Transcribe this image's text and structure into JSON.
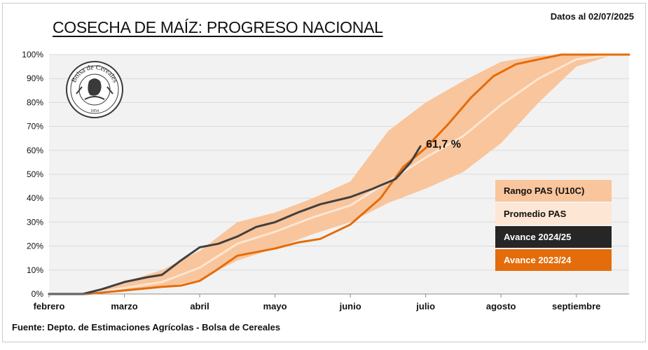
{
  "header": {
    "title": "COSECHA DE MAÍZ: PROGRESO NACIONAL",
    "date_note": "Datos al 02/07/2025"
  },
  "footer": {
    "source": "Fuente: Depto. de Estimaciones Agrícolas - Bolsa de Cereales"
  },
  "logo": {
    "text": "Bolsa de Cereales",
    "year": "1854"
  },
  "colors": {
    "background": "#f2f2f2",
    "range_band": "#f9c59c",
    "average": "#fde6d3",
    "current": "#404040",
    "previous": "#e46c0a",
    "grid": "#d9d9d9"
  },
  "chart_data": {
    "type": "line",
    "title": "COSECHA DE MAÍZ: PROGRESO NACIONAL",
    "x_ticks": [
      "febrero",
      "marzo",
      "abril",
      "mayo",
      "junio",
      "julio",
      "agosto",
      "septiembre"
    ],
    "y_ticks": [
      "0%",
      "10%",
      "20%",
      "30%",
      "40%",
      "50%",
      "60%",
      "70%",
      "80%",
      "90%",
      "100%"
    ],
    "ylim": [
      0,
      100
    ],
    "xlim": [
      0,
      7.7
    ],
    "grid": true,
    "legend_position": "right",
    "annotation": {
      "text": "61,7 %",
      "x": 4.93,
      "y": 61.7
    },
    "series": [
      {
        "name": "Rango PAS (U10C)",
        "kind": "band",
        "x": [
          0,
          0.5,
          1.0,
          1.5,
          2.0,
          2.5,
          3.0,
          3.5,
          4.0,
          4.5,
          5.0,
          5.5,
          6.0,
          6.5,
          7.0,
          7.5,
          7.7
        ],
        "upper": [
          0,
          0.5,
          5,
          10,
          18,
          30,
          34,
          40,
          47,
          68,
          80,
          89,
          97,
          99.5,
          100,
          100,
          100
        ],
        "lower": [
          0,
          0,
          1,
          2.5,
          6,
          14,
          19,
          25,
          30,
          38,
          44,
          51,
          63,
          80,
          95,
          100,
          100
        ]
      },
      {
        "name": "Promedio PAS",
        "kind": "line",
        "x": [
          0,
          0.5,
          1.0,
          1.5,
          2.0,
          2.5,
          3.0,
          3.5,
          4.0,
          4.5,
          5.0,
          5.5,
          6.0,
          6.5,
          7.0,
          7.5,
          7.7
        ],
        "values": [
          0,
          0,
          2.5,
          5,
          11,
          21,
          26,
          32,
          37,
          47,
          57,
          66,
          79,
          90,
          98,
          100,
          100
        ]
      },
      {
        "name": "Avance 2024/25",
        "kind": "line",
        "x": [
          0,
          0.45,
          0.7,
          1.0,
          1.3,
          1.5,
          1.75,
          2.0,
          2.25,
          2.5,
          2.75,
          3.0,
          3.3,
          3.6,
          4.0,
          4.3,
          4.6,
          4.8,
          4.93
        ],
        "values": [
          0,
          0,
          2,
          5,
          7,
          8,
          14,
          19.5,
          21,
          24,
          28,
          30,
          34,
          37.5,
          40.5,
          44,
          48,
          55,
          61.7
        ]
      },
      {
        "name": "Avance 2023/24",
        "kind": "line",
        "x": [
          0,
          0.5,
          1.0,
          1.5,
          1.75,
          2.0,
          2.2,
          2.5,
          3.0,
          3.3,
          3.6,
          4.0,
          4.4,
          4.7,
          5.0,
          5.3,
          5.6,
          5.9,
          6.2,
          6.5,
          6.8,
          7.2,
          7.7
        ],
        "values": [
          0,
          0,
          1.5,
          3,
          3.5,
          5.5,
          9.5,
          16,
          19,
          21.5,
          23,
          29,
          40,
          53,
          61,
          71,
          82,
          91,
          96,
          98,
          100,
          100,
          100
        ]
      }
    ]
  }
}
